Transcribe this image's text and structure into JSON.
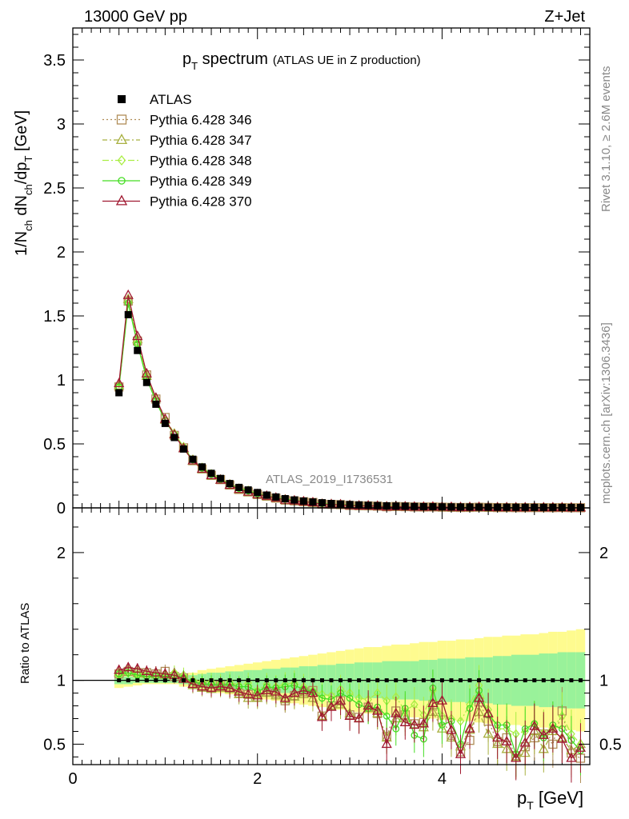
{
  "header": {
    "energy_label": "13000 GeV pp",
    "process_label": "Z+Jet",
    "rivet_label": "Rivet 3.1.10, ≥ 2.6M events",
    "mcplots_label": "mcplots.cern.ch [arXiv:1306.3436]",
    "analysis_id": "ATLAS_2019_I1736531"
  },
  "chart_data": {
    "type": "line",
    "title_main": "p",
    "title_sub": "T",
    "title_rest": " spectrum",
    "title_note": "(ATLAS UE in Z production)",
    "ylabel_main": "1/N",
    "ylabel_parts": [
      "ch",
      " dN",
      "ch",
      "/dp",
      "T",
      " [GeV]"
    ],
    "ratio_ylabel": "Ratio to ATLAS",
    "xlabel_main": "p",
    "xlabel_sub": "T",
    "xlabel_rest": " [GeV]",
    "xlim": [
      0,
      5.6
    ],
    "ylim": [
      0,
      3.75
    ],
    "ratio_ylim": [
      0.34,
      2.35
    ],
    "x_ticks": [
      "0",
      "2",
      "4"
    ],
    "y_ticks": [
      "0",
      "0.5",
      "1",
      "1.5",
      "2",
      "2.5",
      "3",
      "3.5"
    ],
    "ratio_ticks": [
      "0.5",
      "1",
      "2"
    ],
    "x": [
      0.5,
      0.6,
      0.7,
      0.8,
      0.9,
      1.0,
      1.1,
      1.2,
      1.3,
      1.4,
      1.5,
      1.6,
      1.7,
      1.8,
      1.9,
      2.0,
      2.1,
      2.2,
      2.3,
      2.4,
      2.5,
      2.6,
      2.7,
      2.8,
      2.9,
      3.0,
      3.1,
      3.2,
      3.3,
      3.4,
      3.5,
      3.6,
      3.7,
      3.8,
      3.9,
      4.0,
      4.1,
      4.2,
      4.3,
      4.4,
      4.5,
      4.6,
      4.7,
      4.8,
      4.9,
      5.0,
      5.1,
      5.2,
      5.3,
      5.4,
      5.5
    ],
    "atlas_values": [
      0.9,
      1.51,
      1.23,
      0.98,
      0.81,
      0.66,
      0.55,
      0.46,
      0.38,
      0.32,
      0.27,
      0.23,
      0.19,
      0.16,
      0.14,
      0.12,
      0.1,
      0.085,
      0.072,
      0.062,
      0.053,
      0.046,
      0.04,
      0.034,
      0.03,
      0.026,
      0.023,
      0.02,
      0.018,
      0.016,
      0.014,
      0.013,
      0.011,
      0.01,
      0.009,
      0.008,
      0.0075,
      0.007,
      0.0065,
      0.006,
      0.0055,
      0.005,
      0.0047,
      0.0044,
      0.0041,
      0.0038,
      0.0036,
      0.0034,
      0.0032,
      0.003,
      0.0028
    ],
    "band_inner": [
      0.03,
      0.03,
      0.02,
      0.02,
      0.02,
      0.02,
      0.02,
      0.03,
      0.04,
      0.05,
      0.06,
      0.06,
      0.07,
      0.07,
      0.08,
      0.08,
      0.09,
      0.09,
      0.1,
      0.1,
      0.11,
      0.11,
      0.12,
      0.12,
      0.13,
      0.13,
      0.14,
      0.14,
      0.14,
      0.15,
      0.15,
      0.15,
      0.15,
      0.16,
      0.16,
      0.17,
      0.17,
      0.17,
      0.18,
      0.18,
      0.18,
      0.19,
      0.19,
      0.2,
      0.2,
      0.2,
      0.21,
      0.21,
      0.22,
      0.22,
      0.22
    ],
    "band_outer": [
      0.06,
      0.05,
      0.04,
      0.03,
      0.03,
      0.03,
      0.03,
      0.05,
      0.06,
      0.08,
      0.09,
      0.1,
      0.11,
      0.12,
      0.13,
      0.14,
      0.15,
      0.16,
      0.17,
      0.18,
      0.19,
      0.2,
      0.21,
      0.22,
      0.23,
      0.24,
      0.25,
      0.26,
      0.26,
      0.27,
      0.28,
      0.28,
      0.29,
      0.3,
      0.3,
      0.31,
      0.31,
      0.32,
      0.32,
      0.33,
      0.34,
      0.34,
      0.35,
      0.35,
      0.36,
      0.36,
      0.37,
      0.38,
      0.38,
      0.39,
      0.4
    ],
    "series": [
      {
        "name": "Pythia 6.428 346",
        "color": "#b08d57",
        "marker": "square",
        "dash": "2,3",
        "ratio": [
          1.05,
          1.07,
          1.06,
          1.06,
          1.05,
          1.07,
          1.03,
          1.02,
          0.97,
          0.95,
          0.94,
          0.96,
          0.94,
          0.9,
          0.89,
          0.87,
          0.91,
          0.9,
          0.84,
          0.88,
          0.91,
          0.92,
          0.72,
          0.8,
          0.84,
          0.73,
          0.71,
          0.79,
          0.74,
          0.56,
          0.76,
          0.73,
          0.66,
          0.67,
          0.81,
          0.69,
          0.57,
          0.44,
          0.53,
          0.83,
          0.68,
          0.52,
          0.55,
          0.41,
          0.48,
          0.55,
          0.58,
          0.5,
          0.76,
          0.43,
          0.39
        ]
      },
      {
        "name": "Pythia 6.428 347",
        "color": "#a8b040",
        "marker": "triangle",
        "dash": "6,3,2,3",
        "ratio": [
          1.06,
          1.08,
          1.07,
          1.05,
          1.06,
          1.04,
          1.05,
          1.01,
          0.96,
          0.94,
          0.93,
          0.94,
          0.93,
          0.89,
          0.86,
          0.86,
          0.9,
          0.88,
          0.85,
          0.87,
          0.89,
          0.86,
          0.72,
          0.8,
          0.81,
          0.74,
          0.7,
          0.78,
          0.74,
          0.55,
          0.7,
          0.7,
          0.65,
          0.63,
          0.75,
          0.62,
          0.55,
          0.48,
          0.61,
          0.75,
          0.58,
          0.5,
          0.46,
          0.4,
          0.43,
          0.6,
          0.46,
          0.6,
          0.55,
          0.45,
          0.5
        ]
      },
      {
        "name": "Pythia 6.428 348",
        "color": "#aaee44",
        "marker": "diamond",
        "dash": "8,3,2,3",
        "ratio": [
          1.04,
          1.06,
          1.05,
          1.05,
          1.04,
          1.05,
          1.06,
          1.04,
          1.0,
          0.99,
          0.99,
          0.98,
          0.99,
          0.96,
          0.98,
          0.92,
          0.97,
          0.95,
          0.97,
          0.98,
          0.95,
          0.92,
          0.89,
          0.88,
          0.93,
          0.9,
          0.86,
          0.85,
          0.9,
          0.84,
          0.87,
          0.76,
          0.81,
          0.73,
          0.92,
          0.72,
          0.7,
          0.68,
          0.81,
          0.96,
          0.77,
          0.62,
          0.62,
          0.58,
          0.6,
          0.66,
          0.59,
          0.63,
          0.72,
          0.58,
          0.5
        ]
      },
      {
        "name": "Pythia 6.428 349",
        "color": "#44dd22",
        "marker": "circle",
        "dash": "",
        "ratio": [
          1.05,
          1.06,
          1.04,
          1.03,
          1.03,
          1.03,
          1.04,
          1.02,
          0.99,
          0.97,
          0.97,
          0.96,
          0.97,
          0.95,
          0.95,
          0.91,
          0.95,
          0.94,
          0.95,
          0.96,
          0.93,
          0.91,
          0.86,
          0.85,
          0.9,
          0.86,
          0.81,
          0.78,
          0.79,
          0.72,
          0.62,
          0.78,
          0.57,
          0.54,
          0.94,
          0.65,
          0.68,
          0.5,
          0.78,
          0.92,
          0.73,
          0.65,
          0.65,
          0.42,
          0.62,
          0.66,
          0.55,
          0.65,
          0.62,
          0.53,
          0.45
        ]
      },
      {
        "name": "Pythia 6.428 370",
        "color": "#a01830",
        "marker": "triangle",
        "dash": "",
        "ratio": [
          1.08,
          1.1,
          1.09,
          1.07,
          1.06,
          1.05,
          1.04,
          1.01,
          0.97,
          0.95,
          0.94,
          0.95,
          0.94,
          0.91,
          0.89,
          0.88,
          0.92,
          0.91,
          0.86,
          0.9,
          0.92,
          0.9,
          0.71,
          0.79,
          0.84,
          0.72,
          0.7,
          0.8,
          0.76,
          0.5,
          0.74,
          0.67,
          0.65,
          0.66,
          0.82,
          0.84,
          0.61,
          0.42,
          0.62,
          0.86,
          0.74,
          0.55,
          0.52,
          0.39,
          0.51,
          0.64,
          0.57,
          0.62,
          0.54,
          0.39,
          0.47
        ]
      }
    ],
    "legend": [
      "ATLAS",
      "Pythia 6.428 346",
      "Pythia 6.428 347",
      "Pythia 6.428 348",
      "Pythia 6.428 349",
      "Pythia 6.428 370"
    ],
    "band_colors": {
      "inner": "#99f29a",
      "outer": "#fefb8f"
    }
  }
}
